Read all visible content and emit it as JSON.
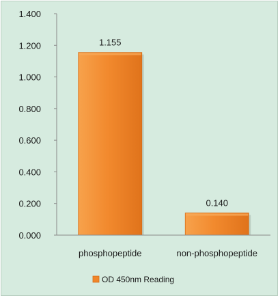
{
  "chart_data": {
    "type": "bar",
    "categories": [
      "phosphopeptide",
      "non-phosphopeptide"
    ],
    "series": [
      {
        "name": "OD 450nm Reading",
        "values": [
          1.155,
          0.14
        ],
        "data_labels": [
          "1.155",
          "0.140"
        ]
      }
    ],
    "ylim": [
      0,
      1.4
    ],
    "yticks": [
      "0.000",
      "0.200",
      "0.400",
      "0.600",
      "0.800",
      "1.000",
      "1.200",
      "1.400"
    ],
    "grid": false,
    "legend_position": "bottom",
    "title": "",
    "xlabel": "",
    "ylabel": ""
  },
  "colors": {
    "background": "#d6ebdf",
    "bar_light": "#f8a957",
    "bar_main": "#f0862a",
    "bar_dark": "#d86c15",
    "axis": "#8a8a8a"
  }
}
